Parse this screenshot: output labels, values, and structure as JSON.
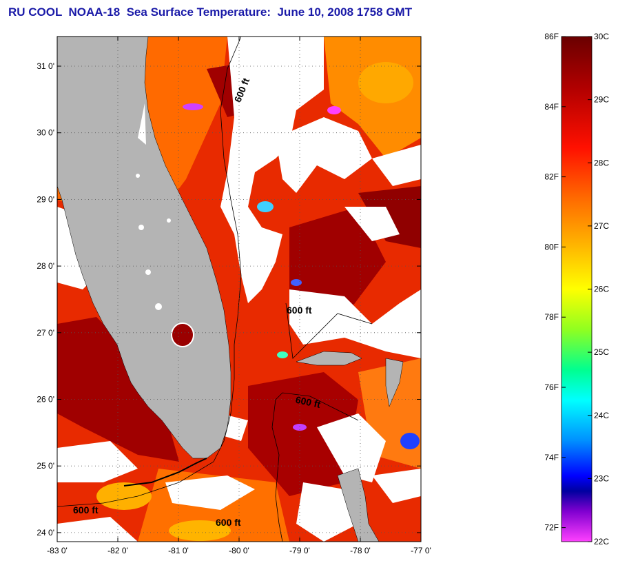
{
  "title": "RU COOL  NOAA-18  Sea Surface Temperature:  June 10, 2008 1758 GMT",
  "map": {
    "lon_ticks": [
      "-83 0'",
      "-82 0'",
      "-81 0'",
      "-80 0'",
      "-79 0'",
      "-78 0'",
      "-77 0'"
    ],
    "lat_ticks": [
      "31 0'",
      "30 0'",
      "29 0'",
      "28 0'",
      "27 0'",
      "26 0'",
      "25 0'",
      "24 0'"
    ],
    "lon_range": [
      -83,
      -77
    ],
    "lat_range": [
      23.8,
      31.5
    ],
    "depth_contour_label": "600 ft",
    "colors": {
      "land": "#b4b4b4",
      "cloud": "#ffffff",
      "warm": "#d81a00",
      "hot": "#8a0000",
      "mid": "#ff7a00"
    }
  },
  "colorbar": {
    "f_labels": [
      "86F",
      "84F",
      "82F",
      "80F",
      "78F",
      "76F",
      "74F",
      "72F"
    ],
    "c_labels": [
      "30C",
      "29C",
      "28C",
      "27C",
      "26C",
      "25C",
      "24C",
      "23C",
      "22C"
    ],
    "stops": [
      "#7a0000",
      "#c00000",
      "#ff0000",
      "#ff6000",
      "#ffb000",
      "#ffff00",
      "#80ff00",
      "#00ff80",
      "#00ffff",
      "#0080ff",
      "#0000ff",
      "#0000c0",
      "#8000ff",
      "#ff40ff"
    ]
  }
}
